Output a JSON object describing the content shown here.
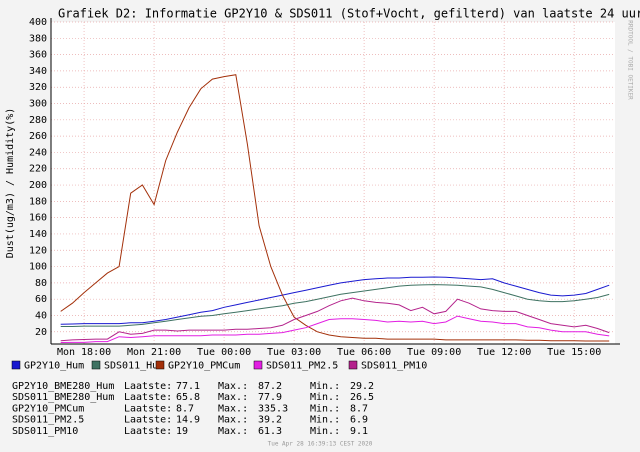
{
  "chart_data": {
    "type": "line",
    "title": "Grafiek D2: Informatie GP2Y10 & SDS011 (Stof+Vocht, gefilterd) van laatste 24 uur",
    "y_label": "Dust(ug/m3) / Humidity(%)",
    "watermark": "RRDTOOL / TOBI OETIKER",
    "timestamp": "Tue Apr 28 16:39:13 CEST 2020",
    "x": [
      "Mon 17:00",
      "Mon 17:30",
      "Mon 18:00",
      "Mon 18:30",
      "Mon 19:00",
      "Mon 19:30",
      "Mon 20:00",
      "Mon 20:30",
      "Mon 21:00",
      "Mon 21:30",
      "Mon 22:00",
      "Mon 22:30",
      "Mon 23:00",
      "Mon 23:30",
      "Tue 00:00",
      "Tue 00:30",
      "Tue 01:00",
      "Tue 01:30",
      "Tue 02:00",
      "Tue 02:30",
      "Tue 03:00",
      "Tue 03:30",
      "Tue 04:00",
      "Tue 04:30",
      "Tue 05:00",
      "Tue 05:30",
      "Tue 06:00",
      "Tue 06:30",
      "Tue 07:00",
      "Tue 07:30",
      "Tue 08:00",
      "Tue 08:30",
      "Tue 09:00",
      "Tue 09:30",
      "Tue 10:00",
      "Tue 10:30",
      "Tue 11:00",
      "Tue 11:30",
      "Tue 12:00",
      "Tue 12:30",
      "Tue 13:00",
      "Tue 13:30",
      "Tue 14:00",
      "Tue 14:30",
      "Tue 15:00",
      "Tue 15:30",
      "Tue 16:00",
      "Tue 16:30"
    ],
    "xlim": [
      "Mon 16:35",
      "Tue 16:45"
    ],
    "xticks": [
      "Mon 18:00",
      "Mon 21:00",
      "Tue 00:00",
      "Tue 03:00",
      "Tue 06:00",
      "Tue 09:00",
      "Tue 12:00",
      "Tue 15:00"
    ],
    "ylim": [
      5,
      400
    ],
    "yticks": [
      20,
      40,
      60,
      80,
      100,
      120,
      140,
      160,
      180,
      200,
      220,
      240,
      260,
      280,
      300,
      320,
      340,
      360,
      380,
      400
    ],
    "grid": true,
    "series": [
      {
        "name": "GP2Y10_Hum",
        "color": "#1a1ad0",
        "values": [
          29.2,
          29.5,
          30,
          30,
          30,
          30,
          31,
          31,
          33,
          35,
          38,
          41,
          44,
          46,
          50,
          53,
          56,
          59,
          62,
          65,
          68,
          71,
          74,
          77,
          80,
          82,
          84,
          85,
          86,
          86,
          87,
          87,
          87.2,
          87,
          86,
          85,
          84,
          85,
          80,
          76,
          72,
          68,
          65,
          64,
          65,
          67,
          72,
          77.1
        ]
      },
      {
        "name": "SDS011_Hum",
        "color": "#3f7262",
        "values": [
          26.5,
          26.5,
          27,
          27,
          27,
          27,
          28,
          29,
          31,
          33,
          35,
          37,
          39,
          40,
          42,
          44,
          46,
          48,
          50,
          52,
          55,
          57,
          60,
          63,
          66,
          68,
          70,
          72,
          74,
          76,
          77,
          77.5,
          77.9,
          77.5,
          77,
          76,
          75,
          72,
          68,
          64,
          60,
          58,
          57,
          57,
          58,
          60,
          62,
          65.8
        ]
      },
      {
        "name": "GP2Y10_PMCum",
        "color": "#a3300a",
        "values": [
          45,
          55,
          68,
          80,
          92,
          100,
          190,
          200,
          176,
          230,
          265,
          295,
          318,
          330,
          333,
          335.3,
          250,
          150,
          100,
          65,
          38,
          28,
          20,
          16,
          14,
          13,
          12,
          12,
          11,
          11,
          11,
          11,
          11,
          10,
          10,
          10,
          10,
          10,
          10,
          10,
          9.5,
          9.5,
          9,
          9,
          9,
          8.7,
          8.7,
          8.7
        ]
      },
      {
        "name": "SDS011_PM2.5",
        "color": "#e21ee2",
        "values": [
          6.9,
          7,
          7,
          8,
          8,
          14,
          13,
          14,
          15,
          15,
          15,
          15,
          15,
          16,
          16,
          16,
          17,
          17,
          18,
          19,
          22,
          25,
          30,
          35,
          36,
          36,
          35,
          34,
          32,
          33,
          32,
          33,
          30,
          32,
          39.2,
          36,
          33,
          32,
          30,
          30,
          26,
          25,
          22,
          20,
          20,
          20,
          17,
          14.9
        ]
      },
      {
        "name": "SDS011_PM10",
        "color": "#b4238c",
        "values": [
          9.1,
          10,
          10.5,
          11,
          11,
          20,
          17,
          18,
          22,
          22,
          21,
          22,
          22,
          22,
          22,
          23,
          23,
          24,
          25,
          28,
          35,
          40,
          45,
          52,
          58,
          61.3,
          58,
          56,
          55,
          53,
          46,
          50,
          42,
          45,
          60,
          55,
          48,
          46,
          45,
          45,
          40,
          35,
          30,
          28,
          26,
          28,
          24,
          19.0
        ]
      }
    ],
    "stats": {
      "labels": [
        "Laatste:",
        "Max.:",
        "Min.:"
      ],
      "rows": [
        {
          "name": "GP2Y10_BME280_Hum",
          "last": 77.1,
          "max": 87.2,
          "min": 29.2
        },
        {
          "name": "SDS011_BME280_Hum",
          "last": 65.8,
          "max": 77.9,
          "min": 26.5
        },
        {
          "name": "GP2Y10_PMCum",
          "last": 8.7,
          "max": 335.3,
          "min": 8.7
        },
        {
          "name": "SDS011_PM2.5",
          "last": 14.9,
          "max": 39.2,
          "min": 6.9
        },
        {
          "name": "SDS011_PM10",
          "last": 19.0,
          "max": 61.3,
          "min": 9.1
        }
      ]
    }
  }
}
